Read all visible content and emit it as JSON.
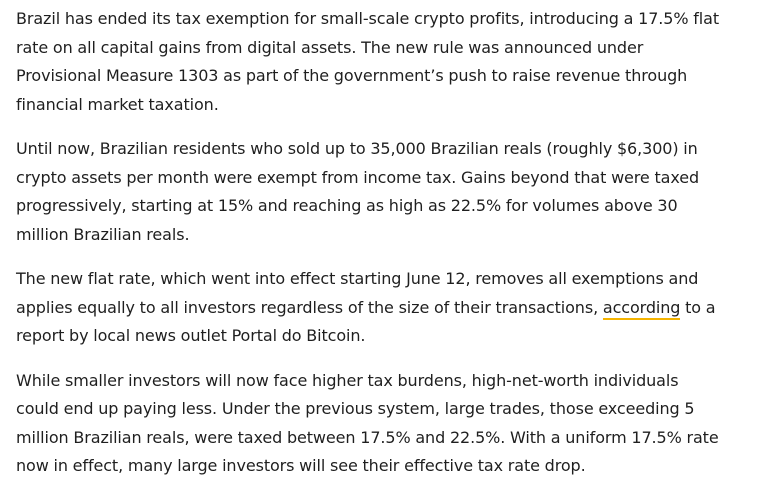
{
  "article": {
    "paragraphs": [
      {
        "text": "Brazil has ended its tax exemption for small-scale crypto profits, introducing a 17.5% flat rate on all capital gains from digital assets. The new rule was announced under Provisional Measure 1303 as part of the government’s push to raise revenue through financial market taxation."
      },
      {
        "text": "Until now, Brazilian residents who sold up to 35,000 Brazilian reals (roughly $6,300) in crypto assets per month were exempt from income tax. Gains beyond that were taxed progressively, starting at 15% and reaching as high as 22.5% for volumes above 30 million Brazilian reals."
      },
      {
        "before": "The new flat rate, which went into effect starting June 12, removes all exemptions and applies equally to all investors regardless of the size of their transactions, ",
        "link": "according",
        "after": " to a report by local news outlet Portal do Bitcoin."
      },
      {
        "text": "While smaller investors will now face higher tax burdens, high-net-worth individuals could end up paying less. Under the previous system, large trades, those exceeding 5 million Brazilian reals, were taxed between 17.5% and 22.5%. With a uniform 17.5% rate now in effect, many large investors will see their effective tax rate drop."
      }
    ]
  },
  "colors": {
    "text": "#1f1f1f",
    "link_underline": "#f5b400",
    "background": "#ffffff"
  }
}
